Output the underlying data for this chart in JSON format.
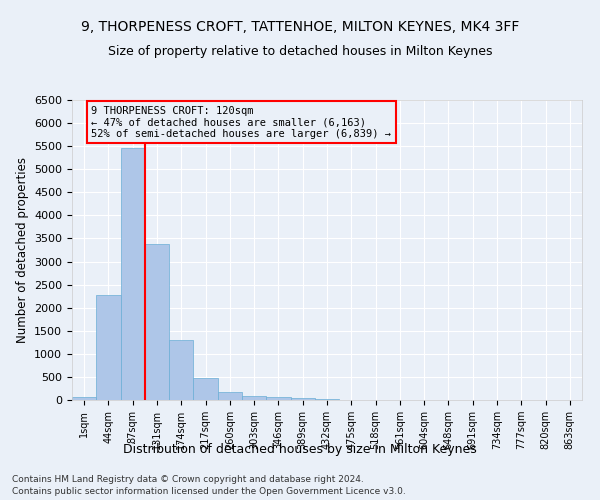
{
  "title_line1": "9, THORPENESS CROFT, TATTENHOE, MILTON KEYNES, MK4 3FF",
  "title_line2": "Size of property relative to detached houses in Milton Keynes",
  "xlabel": "Distribution of detached houses by size in Milton Keynes",
  "ylabel": "Number of detached properties",
  "footer_line1": "Contains HM Land Registry data © Crown copyright and database right 2024.",
  "footer_line2": "Contains public sector information licensed under the Open Government Licence v3.0.",
  "bar_labels": [
    "1sqm",
    "44sqm",
    "87sqm",
    "131sqm",
    "174sqm",
    "217sqm",
    "260sqm",
    "303sqm",
    "346sqm",
    "389sqm",
    "432sqm",
    "475sqm",
    "518sqm",
    "561sqm",
    "604sqm",
    "648sqm",
    "691sqm",
    "734sqm",
    "777sqm",
    "820sqm",
    "863sqm"
  ],
  "bar_values": [
    70,
    2280,
    5450,
    3380,
    1300,
    480,
    165,
    95,
    55,
    35,
    15,
    8,
    5,
    3,
    2,
    1,
    1,
    0,
    0,
    0,
    0
  ],
  "bar_color": "#aec6e8",
  "bar_edge_color": "#6aaed6",
  "ylim": [
    0,
    6500
  ],
  "yticks": [
    0,
    500,
    1000,
    1500,
    2000,
    2500,
    3000,
    3500,
    4000,
    4500,
    5000,
    5500,
    6000,
    6500
  ],
  "property_line_x": 2.5,
  "annotation_text_line1": "9 THORPENESS CROFT: 120sqm",
  "annotation_text_line2": "← 47% of detached houses are smaller (6,163)",
  "annotation_text_line3": "52% of semi-detached houses are larger (6,839) →",
  "background_color": "#eaf0f8",
  "grid_color": "#ffffff",
  "annotation_fontsize": 7.5,
  "title_fontsize1": 10,
  "title_fontsize2": 9
}
